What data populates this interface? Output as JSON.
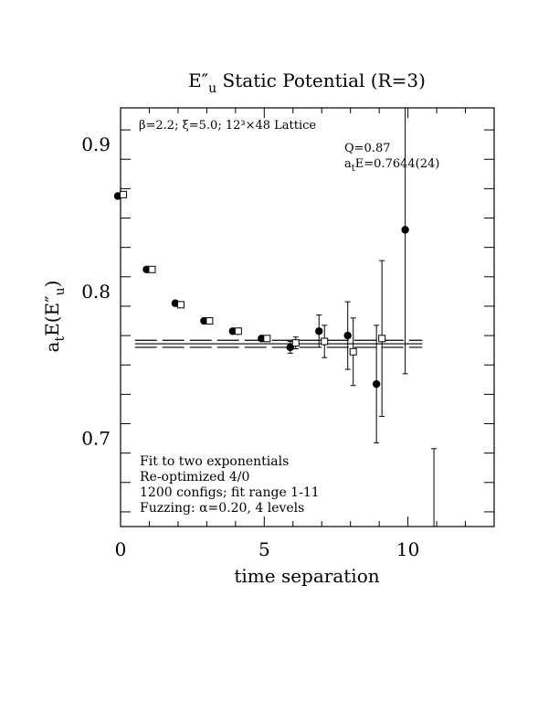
{
  "chart_data": {
    "type": "scatter",
    "title": "E″u  Static Potential (R=3)",
    "xlabel": "time separation",
    "ylabel": "atE(E″u)",
    "xlim": [
      0,
      13
    ],
    "ylim": [
      0.64,
      0.925
    ],
    "x_ticks": [
      0,
      5,
      10
    ],
    "y_ticks": [
      0.7,
      0.8,
      0.9
    ],
    "x_tick_labels": [
      "0",
      "5",
      "10"
    ],
    "y_tick_labels": [
      "0.7",
      "0.8",
      "0.9"
    ],
    "annotations": {
      "lattice": "β=2.2; ξ=5.0; 12³×48 Lattice",
      "q": "Q=0.87",
      "fit_energy": "atE=0.7644(24)",
      "info_lines": [
        "Fit to two exponentials",
        "Re-optimized 4/0",
        "1200 configs; fit range 1-11",
        "Fuzzing: α=0.20, 4 levels"
      ]
    },
    "series": [
      {
        "marker": "filled-circle",
        "points": [
          {
            "x": 0,
            "y": 0.865,
            "err": 0.0
          },
          {
            "x": 1,
            "y": 0.815,
            "err": 0.0
          },
          {
            "x": 2,
            "y": 0.792,
            "err": 0.0
          },
          {
            "x": 3,
            "y": 0.78,
            "err": 0.0
          },
          {
            "x": 4,
            "y": 0.773,
            "err": 0.0
          },
          {
            "x": 5,
            "y": 0.768,
            "err": 0.0
          },
          {
            "x": 6,
            "y": 0.762,
            "err": 0.004
          },
          {
            "x": 7,
            "y": 0.773,
            "err": 0.011
          },
          {
            "x": 8,
            "y": 0.77,
            "err": 0.023
          },
          {
            "x": 9,
            "y": 0.737,
            "err": 0.04
          },
          {
            "x": 10,
            "y": 0.842,
            "err": 0.098
          },
          {
            "x": 11,
            "y": 0.6,
            "err": 0.093
          }
        ]
      },
      {
        "marker": "open-square",
        "points": [
          {
            "x": 0,
            "y": 0.866,
            "err": 0.0
          },
          {
            "x": 1,
            "y": 0.815,
            "err": 0.0
          },
          {
            "x": 2,
            "y": 0.791,
            "err": 0.0
          },
          {
            "x": 3,
            "y": 0.78,
            "err": 0.0
          },
          {
            "x": 4,
            "y": 0.773,
            "err": 0.0
          },
          {
            "x": 5,
            "y": 0.768,
            "err": 0.0
          },
          {
            "x": 6,
            "y": 0.765,
            "err": 0.004
          },
          {
            "x": 7,
            "y": 0.766,
            "err": 0.011
          },
          {
            "x": 8,
            "y": 0.759,
            "err": 0.023
          },
          {
            "x": 9,
            "y": 0.768,
            "err": 0.053
          }
        ]
      }
    ],
    "fit": {
      "value": 0.7644,
      "error": 0.0024,
      "x_range": [
        0.5,
        10.5
      ]
    }
  }
}
